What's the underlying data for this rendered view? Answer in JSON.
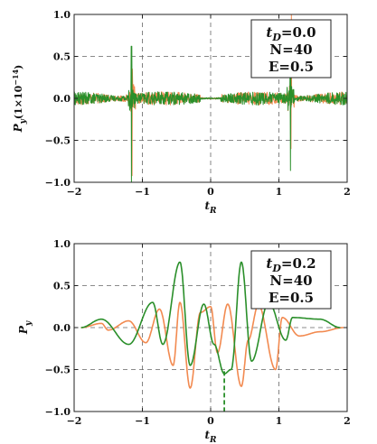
{
  "colors": {
    "orange": "#f28a50",
    "green": "#2a8f2a",
    "grid": "#666666",
    "frame": "#222222"
  },
  "chart_data": [
    {
      "type": "line",
      "xlabel": "t_R",
      "ylabel": "P_y(1×10^-14)",
      "xlim": [
        -2,
        2
      ],
      "ylim": [
        -1,
        1
      ],
      "xticks": [
        "−2",
        "−1",
        "0",
        "1",
        "2"
      ],
      "yticks": [
        "1.0",
        "0.5",
        "0.0",
        "−0.5",
        "−1.0"
      ],
      "grid": true,
      "legend_box": {
        "position": "top-right",
        "lines": [
          "t_D=0.0",
          "N=40",
          "E=0.5"
        ]
      },
      "series": [
        {
          "color": "orange",
          "style": "solid",
          "description_values": {
            "noise_amplitude": 0.08,
            "spikes": [
              {
                "x": -1.15,
                "min": -0.92,
                "max": 0.35
              },
              {
                "x": 1.18,
                "min": -0.6,
                "max": 1.0
              }
            ]
          }
        },
        {
          "color": "green",
          "style": "solid",
          "description_values": {
            "noise_amplitude": 0.08,
            "spikes": [
              {
                "x": -1.16,
                "min": -1.0,
                "max": 0.62
              },
              {
                "x": 1.17,
                "min": -0.86,
                "max": 0.36
              }
            ]
          }
        }
      ]
    },
    {
      "type": "line",
      "xlabel": "t_R",
      "ylabel": "P_y",
      "xlim": [
        -2,
        2
      ],
      "ylim": [
        -1,
        1
      ],
      "xticks": [
        "−2",
        "−1",
        "0",
        "1",
        "2"
      ],
      "yticks": [
        "1.0",
        "0.5",
        "0.0",
        "−0.5",
        "−1.0"
      ],
      "grid": true,
      "legend_box": {
        "position": "top-right",
        "lines": [
          "t_D=0.2",
          "N=40",
          "E=0.5"
        ]
      },
      "series": [
        {
          "color": "orange",
          "style": "solid",
          "peaks": [
            [
              -1.9,
              0.0
            ],
            [
              -1.6,
              0.05
            ],
            [
              -1.5,
              -0.03
            ],
            [
              -1.2,
              0.08
            ],
            [
              -0.95,
              -0.18
            ],
            [
              -0.75,
              0.22
            ],
            [
              -0.55,
              -0.45
            ],
            [
              -0.45,
              0.3
            ],
            [
              -0.3,
              -0.72
            ],
            [
              -0.15,
              0.18
            ],
            [
              0.0,
              0.25
            ],
            [
              0.1,
              -0.3
            ],
            [
              0.25,
              0.28
            ],
            [
              0.45,
              -0.7
            ],
            [
              0.55,
              -0.15
            ],
            [
              0.7,
              0.27
            ],
            [
              0.95,
              -0.5
            ],
            [
              1.05,
              0.12
            ],
            [
              1.3,
              -0.1
            ],
            [
              1.6,
              -0.05
            ],
            [
              1.95,
              0.0
            ]
          ]
        },
        {
          "color": "green",
          "style": "solid",
          "peaks": [
            [
              -1.9,
              0.0
            ],
            [
              -1.6,
              0.1
            ],
            [
              -1.2,
              -0.2
            ],
            [
              -0.85,
              0.3
            ],
            [
              -0.7,
              -0.2
            ],
            [
              -0.45,
              0.78
            ],
            [
              -0.3,
              -0.45
            ],
            [
              -0.1,
              0.28
            ],
            [
              0.05,
              -0.2
            ],
            [
              0.2,
              -0.55
            ],
            [
              0.3,
              -0.5
            ],
            [
              0.45,
              0.78
            ],
            [
              0.6,
              -0.4
            ],
            [
              0.85,
              0.3
            ],
            [
              1.1,
              -0.15
            ],
            [
              1.2,
              0.12
            ],
            [
              1.6,
              0.1
            ],
            [
              1.9,
              0.0
            ]
          ],
          "dashed_drop": {
            "x": 0.2,
            "to": -1.0
          }
        }
      ]
    }
  ]
}
